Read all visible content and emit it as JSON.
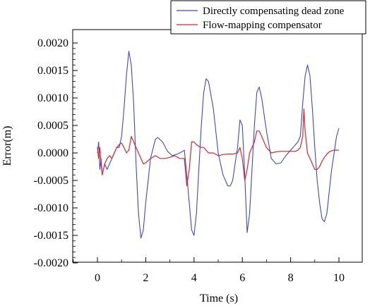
{
  "chart_data": {
    "type": "line",
    "title": "",
    "xlabel": "Time (s)",
    "ylabel": "Error(m)",
    "xlim": [
      -1,
      10.5
    ],
    "ylim": [
      -0.002,
      0.002
    ],
    "xticks": [
      0,
      2,
      4,
      6,
      8,
      10
    ],
    "xtick_labels": [
      "0",
      "2",
      "4",
      "6",
      "8",
      "10"
    ],
    "yticks": [
      0.002,
      0.0015,
      0.001,
      0.0005,
      0.0,
      -0.0005,
      -0.001,
      -0.0015,
      -0.002
    ],
    "ytick_labels": [
      "0.0020",
      "0.0015",
      "0.0010",
      "0.0005",
      "0.0000",
      "-0.0005",
      "-0.0010",
      "-0.0015",
      "-0.0020"
    ],
    "grid": false,
    "legend_position": "top-right",
    "series": [
      {
        "name": "Directly compensating dead zone",
        "color": "#3f48cc",
        "x": [
          0.0,
          0.05,
          0.1,
          0.15,
          0.2,
          0.3,
          0.4,
          0.5,
          0.6,
          0.7,
          0.8,
          0.9,
          1.0,
          1.1,
          1.2,
          1.3,
          1.4,
          1.5,
          1.6,
          1.7,
          1.8,
          1.9,
          2.0,
          2.2,
          2.4,
          2.5,
          2.7,
          2.9,
          3.1,
          3.3,
          3.5,
          3.6,
          3.7,
          3.8,
          3.9,
          4.0,
          4.1,
          4.2,
          4.3,
          4.4,
          4.5,
          4.6,
          4.8,
          5.0,
          5.2,
          5.4,
          5.5,
          5.6,
          5.8,
          5.9,
          6.0,
          6.1,
          6.2,
          6.3,
          6.4,
          6.5,
          6.6,
          6.7,
          6.8,
          7.0,
          7.2,
          7.4,
          7.6,
          7.8,
          8.0,
          8.2,
          8.3,
          8.4,
          8.5,
          8.6,
          8.7,
          8.8,
          8.9,
          9.0,
          9.1,
          9.2,
          9.3,
          9.4,
          9.5,
          9.6,
          9.7,
          9.8,
          9.9,
          10.0
        ],
        "y": [
          0.0,
          0.0002,
          -0.0003,
          -0.0001,
          -0.0004,
          -0.0002,
          -0.0003,
          -0.0002,
          -0.0001,
          0.0,
          0.0001,
          0.0001,
          0.0003,
          0.0008,
          0.0014,
          0.00185,
          0.0016,
          0.0009,
          -0.0002,
          -0.0011,
          -0.00155,
          -0.0014,
          -0.0009,
          -0.0001,
          0.00025,
          0.00028,
          0.0002,
          3e-05,
          -5e-05,
          -2e-05,
          2e-05,
          5e-05,
          -0.0004,
          -0.0009,
          -0.0014,
          -0.0015,
          -0.0011,
          -0.0003,
          0.0005,
          0.0011,
          0.00135,
          0.0013,
          0.0008,
          0.0,
          -0.0004,
          -0.0006,
          -0.0006,
          -0.0005,
          0.0001,
          0.0006,
          0.0005,
          -0.0004,
          -0.00145,
          -0.0011,
          -0.0003,
          0.0005,
          0.0011,
          0.0012,
          0.001,
          0.0004,
          -0.0001,
          -0.0002,
          -0.00018,
          -5e-05,
          5e-05,
          0.00015,
          0.0002,
          0.0003,
          0.0009,
          0.0014,
          0.0016,
          0.0014,
          0.0008,
          0.0001,
          -0.0005,
          -0.0009,
          -0.0012,
          -0.00125,
          -0.0011,
          -0.0007,
          -0.0003,
          0.0,
          0.0003,
          0.00045
        ]
      },
      {
        "name": "Flow-mapping compensator",
        "color": "#d9262a",
        "x": [
          0.0,
          0.05,
          0.1,
          0.15,
          0.2,
          0.3,
          0.4,
          0.5,
          0.6,
          0.7,
          0.8,
          0.9,
          1.0,
          1.1,
          1.2,
          1.3,
          1.4,
          1.5,
          1.6,
          1.7,
          1.8,
          1.9,
          2.0,
          2.2,
          2.4,
          2.6,
          2.8,
          3.0,
          3.2,
          3.4,
          3.6,
          3.7,
          3.8,
          3.9,
          4.0,
          4.1,
          4.2,
          4.3,
          4.4,
          4.5,
          4.6,
          4.8,
          5.0,
          5.2,
          5.4,
          5.6,
          5.8,
          5.9,
          6.0,
          6.1,
          6.2,
          6.3,
          6.4,
          6.5,
          6.6,
          6.7,
          6.8,
          7.0,
          7.2,
          7.4,
          7.6,
          7.8,
          8.0,
          8.2,
          8.3,
          8.4,
          8.5,
          8.55,
          8.6,
          8.7,
          8.8,
          8.9,
          9.0,
          9.1,
          9.2,
          9.3,
          9.4,
          9.5,
          9.6,
          9.7,
          9.8,
          9.9,
          10.0
        ],
        "y": [
          0.0001,
          -0.0001,
          0.0001,
          -0.0002,
          -0.0004,
          -0.0002,
          -0.0001,
          -5e-05,
          -0.0001,
          0.0,
          0.0001,
          0.00015,
          0.00018,
          0.0001,
          0.0,
          5e-05,
          0.0003,
          0.0002,
          0.0001,
          0.0,
          -0.0001,
          -0.0002,
          -0.00018,
          -0.0001,
          -5e-05,
          -0.0001,
          -0.0001,
          -8e-05,
          -5e-05,
          -0.0001,
          -0.0001,
          -0.0006,
          -0.0003,
          0.0002,
          0.0002,
          0.00015,
          0.00012,
          0.0001,
          0.0001,
          5e-05,
          0.0,
          0.0,
          -5e-05,
          -3e-05,
          -2e-05,
          -2e-05,
          0.0,
          0.0001,
          -0.0001,
          -0.0005,
          -0.0003,
          0.0,
          0.0001,
          0.0002,
          0.0004,
          0.0004,
          0.0003,
          0.0001,
          0.0,
          2e-05,
          3e-05,
          3e-05,
          3e-05,
          3e-05,
          5e-05,
          0.0001,
          0.0003,
          0.0008,
          0.0004,
          0.0,
          -0.0001,
          -0.0002,
          -0.0003,
          -0.0003,
          -0.00025,
          -0.00015,
          -8e-05,
          -2e-05,
          2e-05,
          4e-05,
          5e-05,
          5e-05,
          5e-05
        ]
      }
    ]
  }
}
